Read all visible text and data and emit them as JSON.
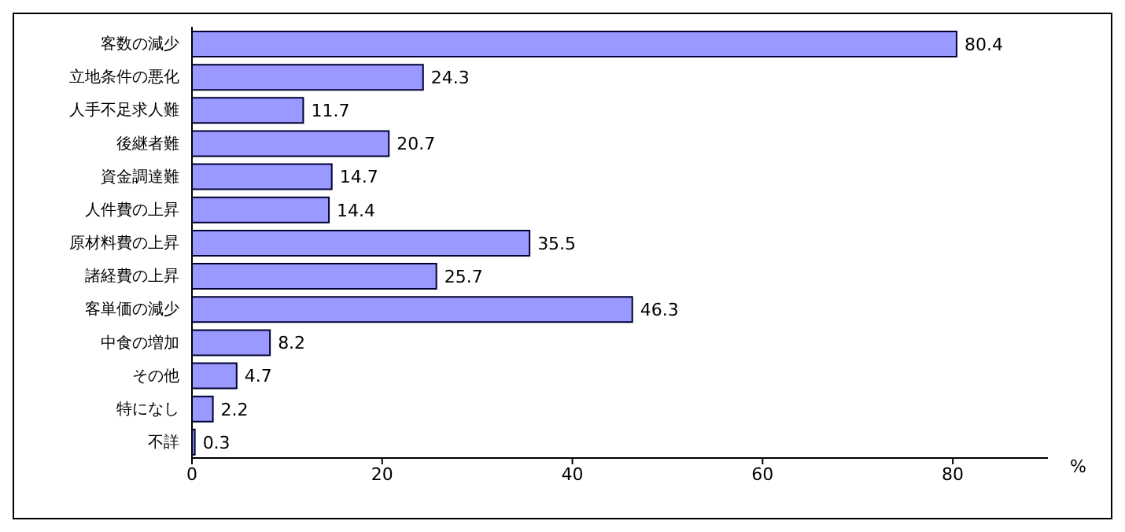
{
  "chart_data": {
    "type": "bar",
    "orientation": "horizontal",
    "xlabel": "%",
    "categories": [
      "客数の減少",
      "立地条件の悪化",
      "人手不足求人難",
      "後継者難",
      "資金調達難",
      "人件費の上昇",
      "原材料費の上昇",
      "諸経費の上昇",
      "客単価の減少",
      "中食の増加",
      "その他",
      "特になし",
      "不詳"
    ],
    "values": [
      80.4,
      24.3,
      11.7,
      20.7,
      14.7,
      14.4,
      35.5,
      25.7,
      46.3,
      8.2,
      4.7,
      2.2,
      0.3
    ],
    "color": "#9999ff",
    "data_labels": true,
    "xlim": [
      0,
      90
    ],
    "xticks": [
      0,
      20,
      40,
      60,
      80
    ]
  }
}
